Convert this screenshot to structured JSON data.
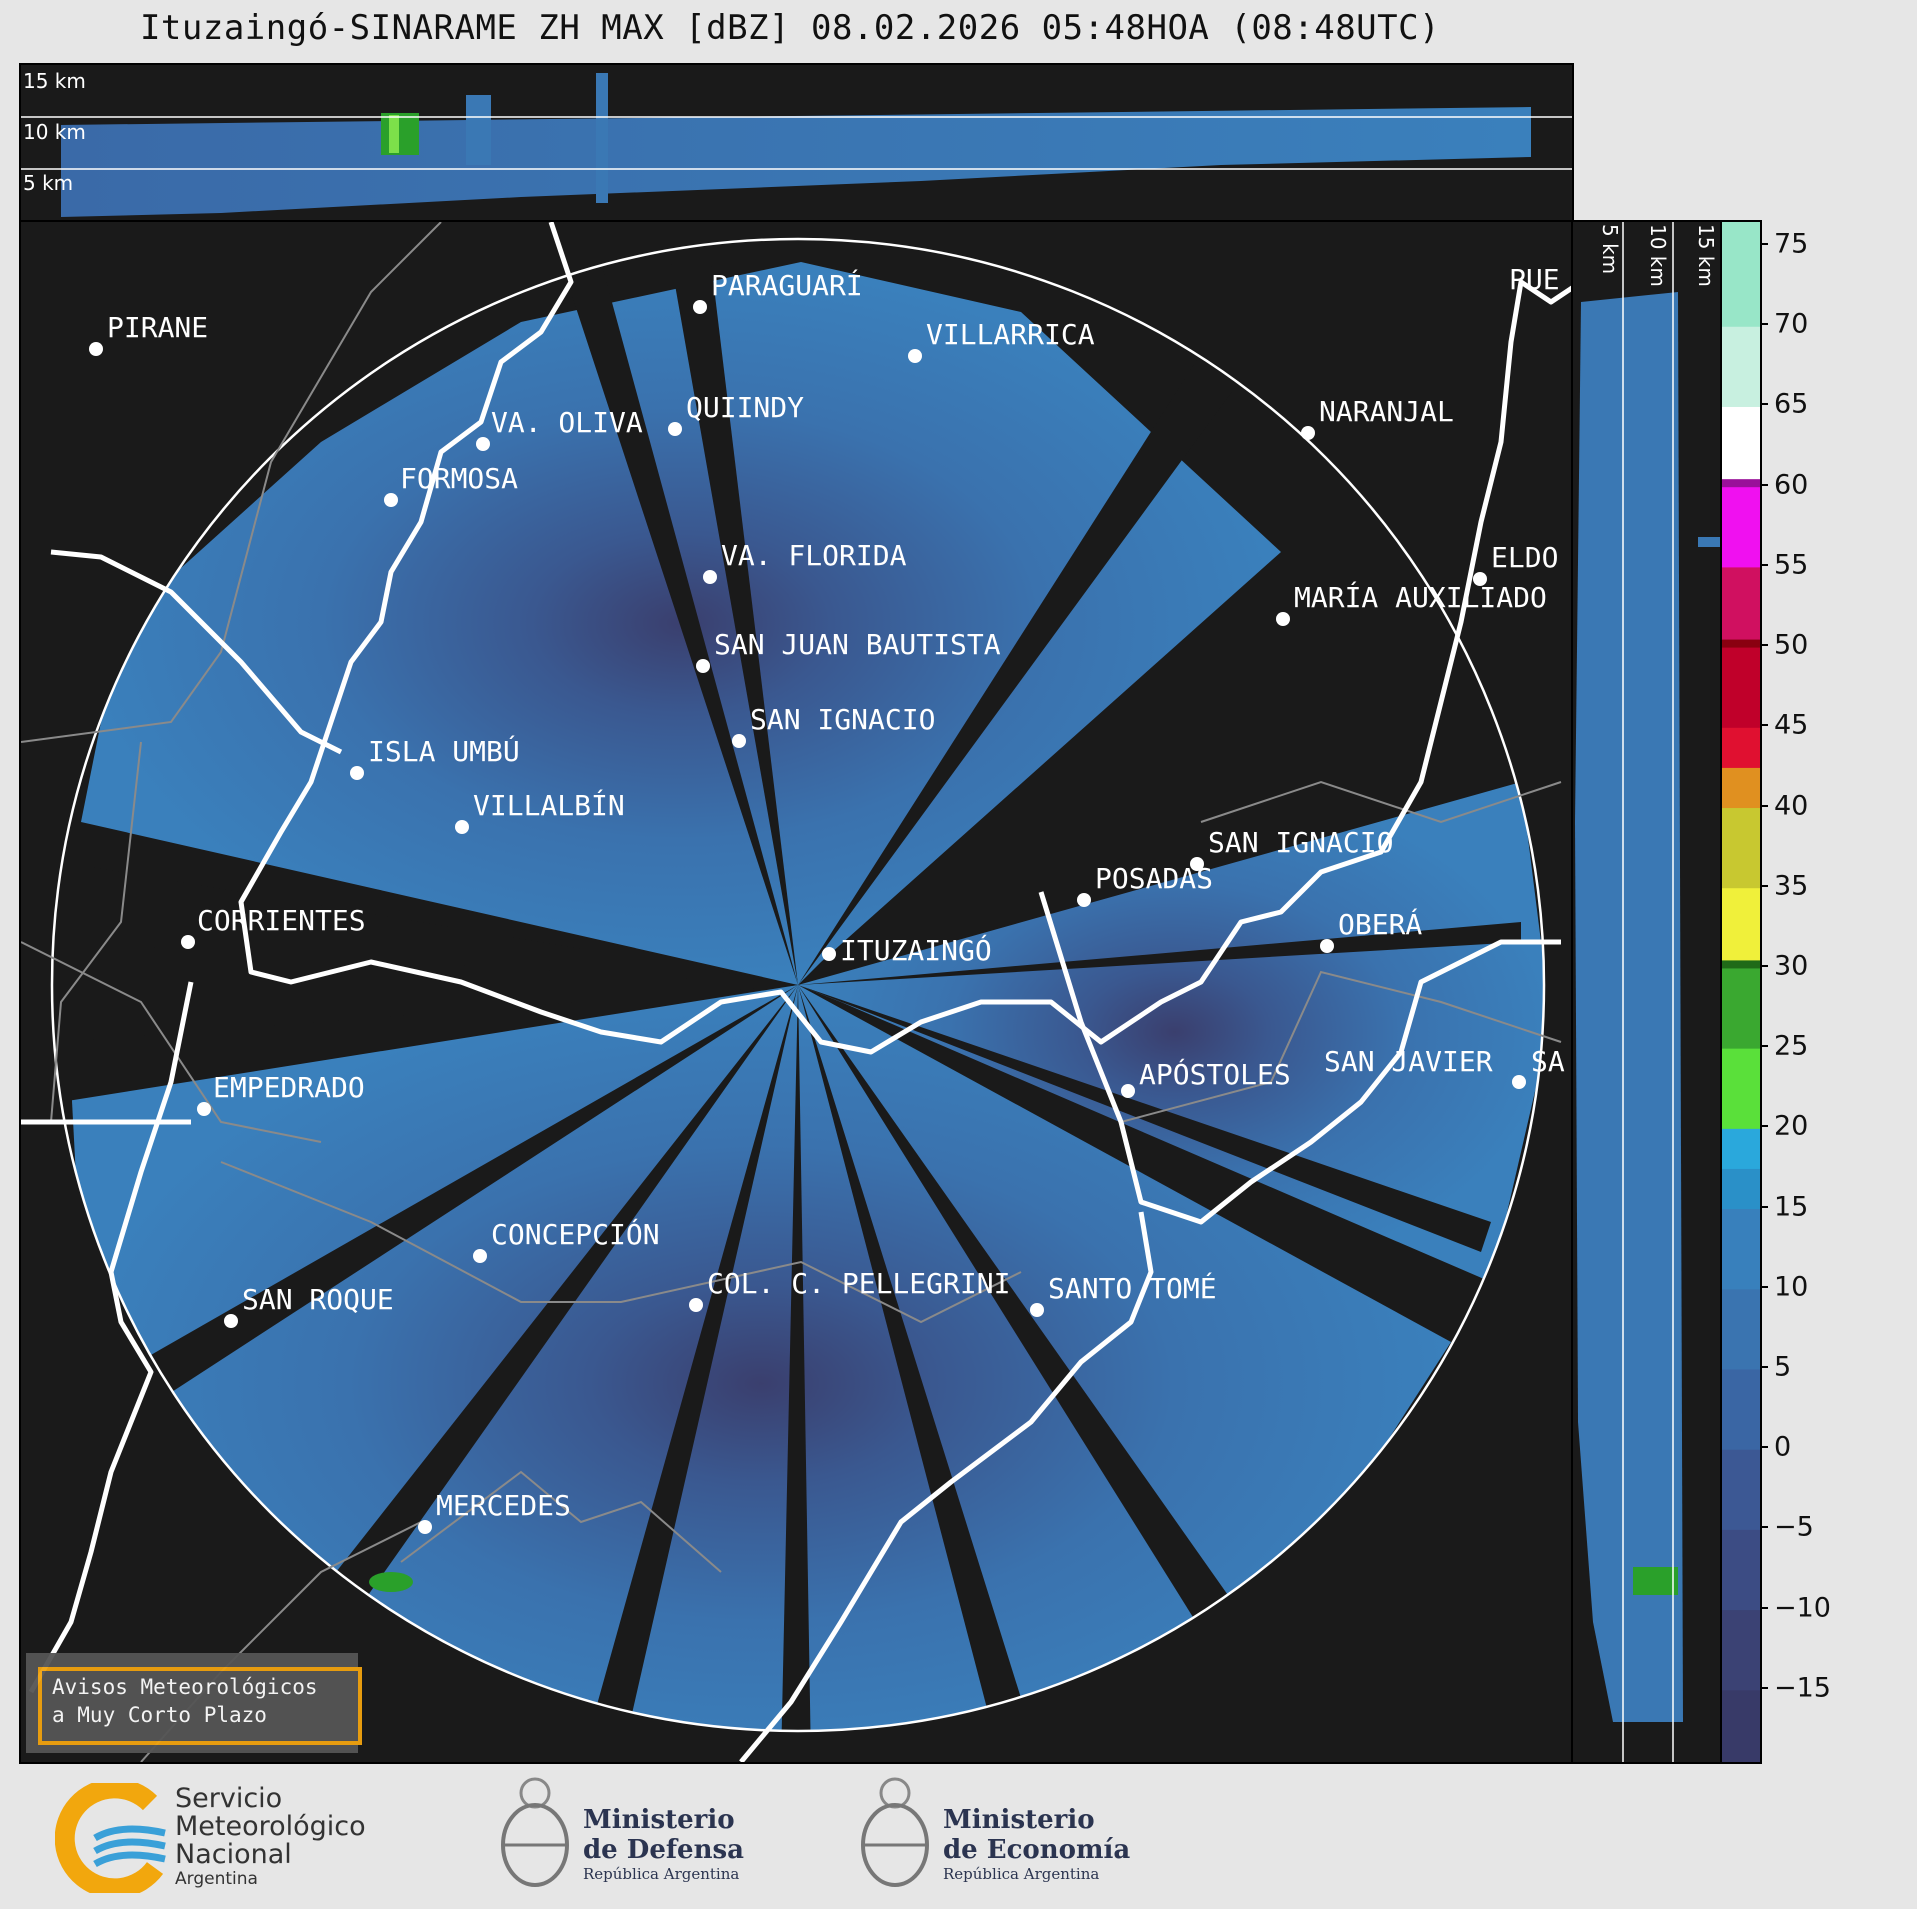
{
  "title": "Ituzaingó-SINARAME ZH MAX [dBZ] 08.02.2026 05:48HOA (08:48UTC)",
  "top_panel": {
    "labels": [
      "15 km",
      "10 km",
      "5 km"
    ]
  },
  "side_panel": {
    "labels": [
      "5 km",
      "10 km",
      "15 km"
    ]
  },
  "cities": [
    {
      "name": "PARAGUARÍ"
    },
    {
      "name": "VILLARRICA"
    },
    {
      "name": "PIRANE"
    },
    {
      "name": "QUIINDY"
    },
    {
      "name": "VA. OLIVA"
    },
    {
      "name": "NARANJAL"
    },
    {
      "name": "FORMOSA"
    },
    {
      "name": "PUE"
    },
    {
      "name": "VA. FLORIDA"
    },
    {
      "name": "ELDO"
    },
    {
      "name": "MARÍA AUXILIADO"
    },
    {
      "name": "SAN JUAN BAUTISTA"
    },
    {
      "name": "SAN IGNACIO"
    },
    {
      "name": "ISLA UMBÚ"
    },
    {
      "name": "VILLALBÍN"
    },
    {
      "name": "SAN IGNACIO"
    },
    {
      "name": "POSADAS"
    },
    {
      "name": "CORRIENTES"
    },
    {
      "name": "ITUZAINGÓ"
    },
    {
      "name": "OBERÁ"
    },
    {
      "name": "EMPEDRADO"
    },
    {
      "name": "APÓSTOLES"
    },
    {
      "name": "SAN JAVIER"
    },
    {
      "name": "SA"
    },
    {
      "name": "CONCEPCIÓN"
    },
    {
      "name": "COL. C. PELLEGRINI"
    },
    {
      "name": "SANTO TOMÉ"
    },
    {
      "name": "SAN ROQUE"
    },
    {
      "name": "MERCEDES"
    }
  ],
  "colorbar": {
    "unit": "dBZ",
    "ticks": [
      "75",
      "70",
      "65",
      "60",
      "55",
      "50",
      "45",
      "40",
      "35",
      "30",
      "25",
      "20",
      "15",
      "10",
      "5",
      "0",
      "−5",
      "−10",
      "−15"
    ],
    "min": -19.5,
    "max": 76.5,
    "colors": {
      "low": "#3a3f6e",
      "mid": "#3a78b4",
      "cyan": "#2aa8dc",
      "green": "#2aa02a",
      "yellow": "#e8e83a",
      "orange": "#e09020",
      "red": "#d0102a",
      "magenta": "#e020e0",
      "mint": "#88e0c0"
    }
  },
  "warning_box": {
    "line1": "Avisos Meteorológicos",
    "line2": "a Muy Corto Plazo"
  },
  "logos": {
    "smn": {
      "line1": "Servicio",
      "line2": "Meteorológico",
      "line3": "Nacional",
      "line4": "Argentina"
    },
    "defensa": {
      "line1": "Ministerio",
      "line2": "de Defensa",
      "line3": "República Argentina"
    },
    "economia": {
      "line1": "Ministerio",
      "line2": "de Economía",
      "line3": "República Argentina"
    }
  }
}
